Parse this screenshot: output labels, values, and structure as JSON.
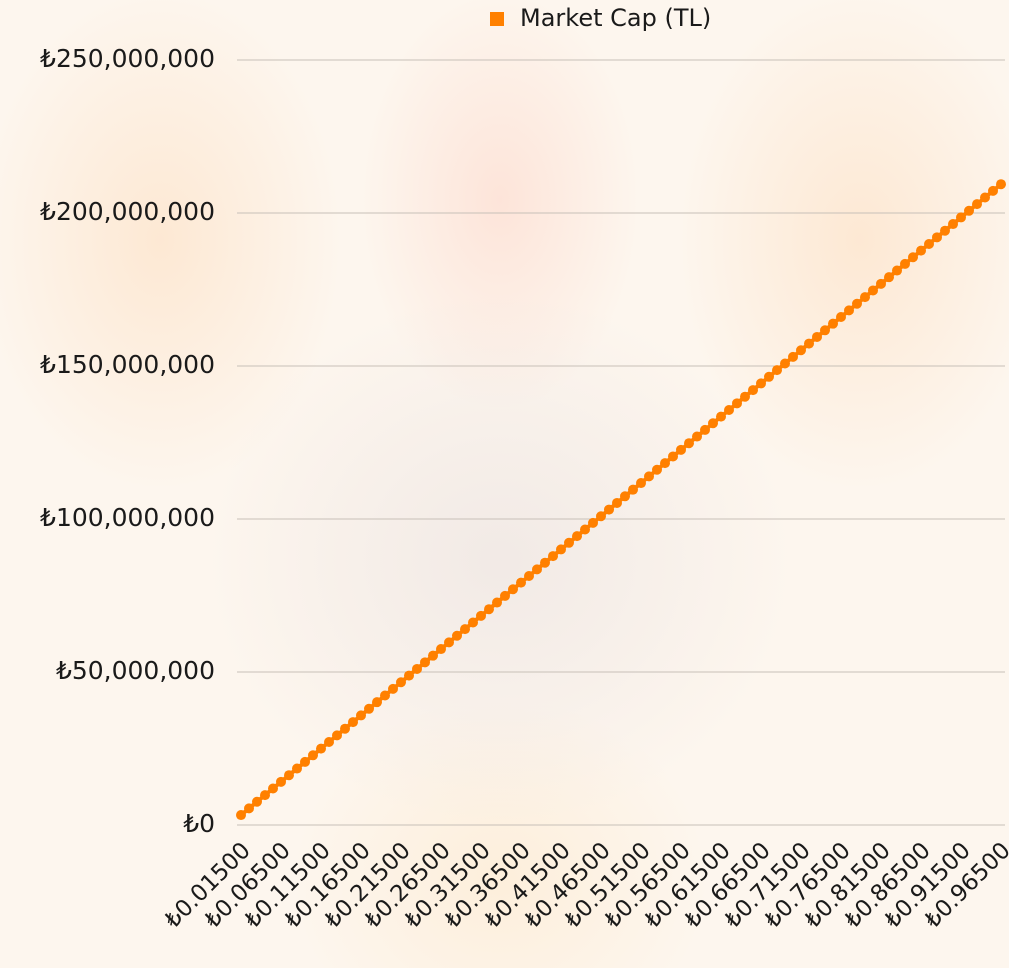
{
  "chart_data": {
    "type": "line",
    "color": "#ff8000",
    "series": [
      {
        "name": "Market Cap (TL)",
        "color": "#ff8000",
        "values": [
          3255000,
          5425000,
          7595000,
          9765000,
          11935000,
          14105000,
          16275000,
          18445000,
          20615000,
          22785000,
          24955000,
          27125000,
          29295000,
          31465000,
          33635000,
          35805000,
          37975000,
          40145000,
          42315000,
          44485000,
          46655000,
          48825000,
          50995000,
          53165000,
          55335000,
          57505000,
          59675000,
          61845000,
          64015000,
          66185000,
          68355000,
          70525000,
          72695000,
          74865000,
          77035000,
          79205000,
          81375000,
          83545000,
          85715000,
          87885000,
          90055000,
          92225000,
          94395000,
          96565000,
          98735000,
          100905000,
          103075000,
          105245000,
          107415000,
          109585000,
          111755000,
          113925000,
          116095000,
          118265000,
          120435000,
          122605000,
          124775000,
          126945000,
          129115000,
          131285000,
          133455000,
          135625000,
          137795000,
          139965000,
          142135000,
          144305000,
          146475000,
          148645000,
          150815000,
          152985000,
          155155000,
          157325000,
          159495000,
          161665000,
          163835000,
          166005000,
          168175000,
          170345000,
          172515000,
          174685000,
          176855000,
          179025000,
          181195000,
          183365000,
          185535000,
          187705000,
          189875000,
          192045000,
          194215000,
          196385000,
          198555000,
          200725000,
          202895000,
          205065000,
          207235000,
          209405000
        ]
      }
    ],
    "categories": [
      "₺0.01500",
      null,
      null,
      null,
      null,
      "₺0.06500",
      null,
      null,
      null,
      null,
      "₺0.11500",
      null,
      null,
      null,
      null,
      "₺0.16500",
      null,
      null,
      null,
      null,
      "₺0.21500",
      null,
      null,
      null,
      null,
      "₺0.26500",
      null,
      null,
      null,
      null,
      "₺0.31500",
      null,
      null,
      null,
      null,
      "₺0.36500",
      null,
      null,
      null,
      null,
      "₺0.41500",
      null,
      null,
      null,
      null,
      "₺0.46500",
      null,
      null,
      null,
      null,
      "₺0.51500",
      null,
      null,
      null,
      null,
      "₺0.56500",
      null,
      null,
      null,
      null,
      "₺0.61500",
      null,
      null,
      null,
      null,
      "₺0.66500",
      null,
      null,
      null,
      null,
      "₺0.71500",
      null,
      null,
      null,
      null,
      "₺0.76500",
      null,
      null,
      null,
      null,
      "₺0.81500",
      null,
      null,
      null,
      null,
      "₺0.86500",
      null,
      null,
      null,
      null,
      "₺0.91500",
      null,
      null,
      null,
      null,
      "₺0.96500"
    ],
    "ylim": [
      0,
      250000000
    ],
    "yticks": [
      {
        "value": 0,
        "label": "₺0"
      },
      {
        "value": 50000000,
        "label": "₺50,000,000"
      },
      {
        "value": 100000000,
        "label": "₺100,000,000"
      },
      {
        "value": 150000000,
        "label": "₺150,000,000"
      },
      {
        "value": 200000000,
        "label": "₺200,000,000"
      },
      {
        "value": 250000000,
        "label": "₺250,000,000"
      }
    ],
    "grid": true,
    "legend": "top",
    "markers": true
  }
}
